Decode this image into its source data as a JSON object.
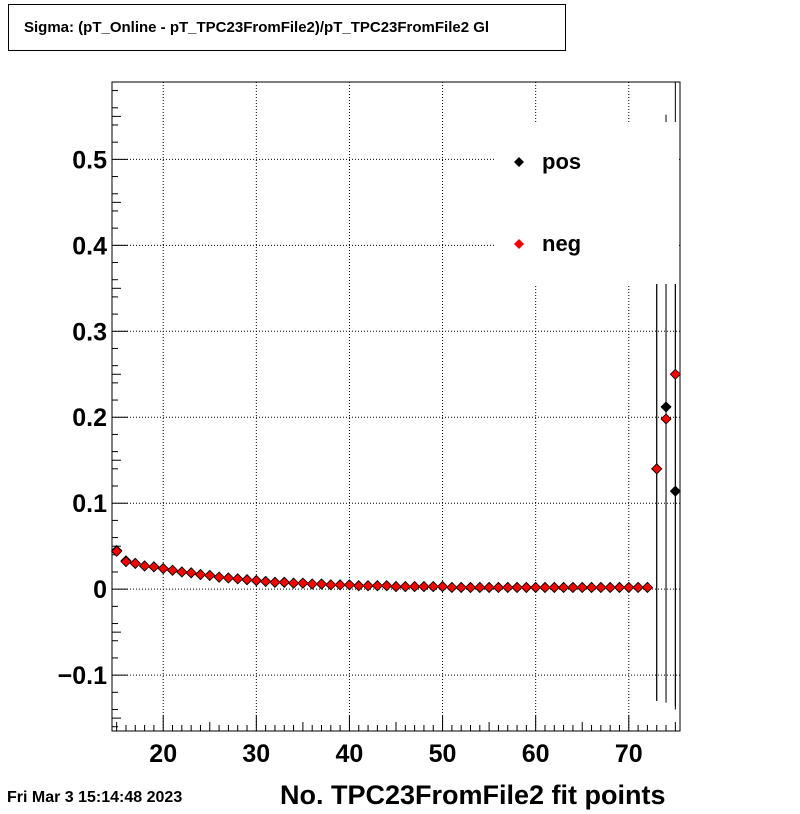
{
  "window": {
    "title": "Sigma: (pT_Online - pT_TPC23FromFile2)/pT_TPC23FromFile2 Gl",
    "timestamp": "Fri Mar  3 15:14:48 2023"
  },
  "chart_data": {
    "type": "scatter",
    "title": "Sigma: (pT_Online - pT_TPC23FromFile2)/pT_TPC23FromFile2 Gl",
    "xlabel": "No. TPC23FromFile2 fit points",
    "ylabel": "",
    "xlim": [
      14.5,
      75.5
    ],
    "ylim": [
      -0.165,
      0.59
    ],
    "xticks": [
      20,
      30,
      40,
      50,
      60,
      70
    ],
    "xtick_labels": [
      "20",
      "30",
      "40",
      "50",
      "60",
      "70"
    ],
    "yticks": [
      -0.1,
      0,
      0.1,
      0.2,
      0.3,
      0.4,
      0.5
    ],
    "ytick_labels": [
      "−0.1",
      "0",
      "0.1",
      "0.2",
      "0.3",
      "0.4",
      "0.5"
    ],
    "grid": true,
    "legend_position": "top-right",
    "colors": {
      "pos": "#000000",
      "neg": "#ff0000"
    },
    "series": [
      {
        "name": "pos",
        "color": "#000000",
        "x": [
          15,
          16,
          17,
          18,
          19,
          20,
          21,
          22,
          23,
          24,
          25,
          26,
          27,
          28,
          29,
          30,
          31,
          32,
          33,
          34,
          35,
          36,
          37,
          38,
          39,
          40,
          41,
          42,
          43,
          44,
          45,
          46,
          47,
          48,
          49,
          50,
          51,
          52,
          53,
          54,
          55,
          56,
          57,
          58,
          59,
          60,
          61,
          62,
          63,
          64,
          65,
          66,
          67,
          68,
          69,
          70,
          71,
          72,
          73,
          74,
          75
        ],
        "y": [
          0.045,
          0.033,
          0.03,
          0.027,
          0.026,
          0.024,
          0.022,
          0.02,
          0.019,
          0.017,
          0.016,
          0.014,
          0.013,
          0.012,
          0.011,
          0.01,
          0.009,
          0.008,
          0.008,
          0.007,
          0.007,
          0.006,
          0.006,
          0.005,
          0.005,
          0.005,
          0.004,
          0.004,
          0.004,
          0.004,
          0.003,
          0.003,
          0.003,
          0.003,
          0.003,
          0.003,
          0.002,
          0.002,
          0.002,
          0.002,
          0.002,
          0.002,
          0.002,
          0.002,
          0.002,
          0.002,
          0.002,
          0.002,
          0.002,
          0.002,
          0.002,
          0.002,
          0.002,
          0.002,
          0.002,
          0.002,
          0.002,
          0.002,
          0.14,
          0.212,
          0.114
        ],
        "error_y": [
          0,
          0,
          0,
          0,
          0,
          0,
          0,
          0,
          0,
          0,
          0,
          0,
          0,
          0,
          0,
          0,
          0,
          0,
          0,
          0,
          0,
          0,
          0,
          0,
          0,
          0,
          0,
          0,
          0,
          0,
          0,
          0,
          0,
          0,
          0,
          0,
          0,
          0,
          0,
          0,
          0,
          0,
          0,
          0,
          0,
          0,
          0,
          0,
          0,
          0,
          0,
          0,
          0,
          0,
          0,
          0,
          0,
          0,
          0.27,
          0.34,
          0.25
        ]
      },
      {
        "name": "neg",
        "color": "#ff0000",
        "x": [
          15,
          16,
          17,
          18,
          19,
          20,
          21,
          22,
          23,
          24,
          25,
          26,
          27,
          28,
          29,
          30,
          31,
          32,
          33,
          34,
          35,
          36,
          37,
          38,
          39,
          40,
          41,
          42,
          43,
          44,
          45,
          46,
          47,
          48,
          49,
          50,
          51,
          52,
          53,
          54,
          55,
          56,
          57,
          58,
          59,
          60,
          61,
          62,
          63,
          64,
          65,
          66,
          67,
          68,
          69,
          70,
          71,
          72,
          73,
          74,
          75
        ],
        "y": [
          0.044,
          0.032,
          0.03,
          0.027,
          0.026,
          0.024,
          0.022,
          0.02,
          0.019,
          0.017,
          0.016,
          0.014,
          0.013,
          0.012,
          0.011,
          0.01,
          0.009,
          0.008,
          0.008,
          0.007,
          0.007,
          0.006,
          0.006,
          0.005,
          0.005,
          0.005,
          0.004,
          0.004,
          0.004,
          0.004,
          0.003,
          0.003,
          0.003,
          0.003,
          0.003,
          0.003,
          0.002,
          0.002,
          0.002,
          0.002,
          0.002,
          0.002,
          0.002,
          0.002,
          0.002,
          0.002,
          0.002,
          0.002,
          0.002,
          0.002,
          0.002,
          0.002,
          0.002,
          0.002,
          0.002,
          0.002,
          0.002,
          0.002,
          0.14,
          0.198,
          0.25
        ],
        "error_y": [
          0,
          0,
          0,
          0,
          0,
          0,
          0,
          0,
          0,
          0,
          0,
          0,
          0,
          0,
          0,
          0,
          0,
          0,
          0,
          0,
          0,
          0,
          0,
          0,
          0,
          0,
          0,
          0,
          0,
          0,
          0,
          0,
          0,
          0,
          0,
          0,
          0,
          0,
          0,
          0,
          0,
          0,
          0,
          0,
          0,
          0,
          0,
          0,
          0,
          0,
          0,
          0,
          0,
          0,
          0,
          0,
          0,
          0,
          0.27,
          0.33,
          0.39
        ]
      }
    ]
  }
}
